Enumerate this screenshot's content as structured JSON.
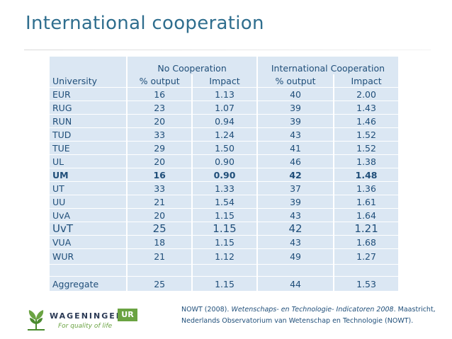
{
  "title": "International cooperation",
  "table": {
    "group_headers": [
      "",
      "No Cooperation",
      "International Cooperation"
    ],
    "column_headers": [
      "University",
      "% output",
      "Impact",
      "% output",
      "Impact"
    ],
    "rows": [
      {
        "university": "EUR",
        "no_output": "16",
        "no_impact": "1.13",
        "int_output": "40",
        "int_impact": "2.00"
      },
      {
        "university": "RUG",
        "no_output": "23",
        "no_impact": "1.07",
        "int_output": "39",
        "int_impact": "1.43"
      },
      {
        "university": "RUN",
        "no_output": "20",
        "no_impact": "0.94",
        "int_output": "39",
        "int_impact": "1.46"
      },
      {
        "university": "TUD",
        "no_output": "33",
        "no_impact": "1.24",
        "int_output": "43",
        "int_impact": "1.52"
      },
      {
        "university": "TUE",
        "no_output": "29",
        "no_impact": "1.50",
        "int_output": "41",
        "int_impact": "1.52"
      },
      {
        "university": "UL",
        "no_output": "20",
        "no_impact": "0.90",
        "int_output": "46",
        "int_impact": "1.38"
      },
      {
        "university": "UM",
        "no_output": "16",
        "no_impact": "0.90",
        "int_output": "42",
        "int_impact": "1.48"
      },
      {
        "university": "UT",
        "no_output": "33",
        "no_impact": "1.33",
        "int_output": "37",
        "int_impact": "1.36"
      },
      {
        "university": "UU",
        "no_output": "21",
        "no_impact": "1.54",
        "int_output": "39",
        "int_impact": "1.61"
      },
      {
        "university": "UvA",
        "no_output": "20",
        "no_impact": "1.15",
        "int_output": "43",
        "int_impact": "1.64"
      },
      {
        "university": "UvT",
        "no_output": "25",
        "no_impact": "1.15",
        "int_output": "42",
        "int_impact": "1.21"
      },
      {
        "university": "VUA",
        "no_output": "18",
        "no_impact": "1.15",
        "int_output": "43",
        "int_impact": "1.68"
      },
      {
        "university": "WUR",
        "no_output": "21",
        "no_impact": "1.12",
        "int_output": "49",
        "int_impact": "1.27"
      }
    ],
    "aggregate": {
      "university": "Aggregate",
      "no_output": "25",
      "no_impact": "1.15",
      "int_output": "44",
      "int_impact": "1.53"
    }
  },
  "logo": {
    "wordmark": "WAGENINGEN",
    "badge": "UR",
    "tagline": "For quality of life"
  },
  "citation": {
    "prefix": "NOWT (2008). ",
    "italic": "Wetenschaps- en Technologie- Indicatoren 2008",
    "suffix": ". Maastricht,",
    "line2": "Nederlands Observatorium van Wetenschap en Technologie (NOWT)."
  },
  "colors": {
    "title": "#2f6e8e",
    "table_text": "#1f4e79",
    "cell_bg": "#dbe7f3",
    "logo_green": "#6aa342"
  }
}
